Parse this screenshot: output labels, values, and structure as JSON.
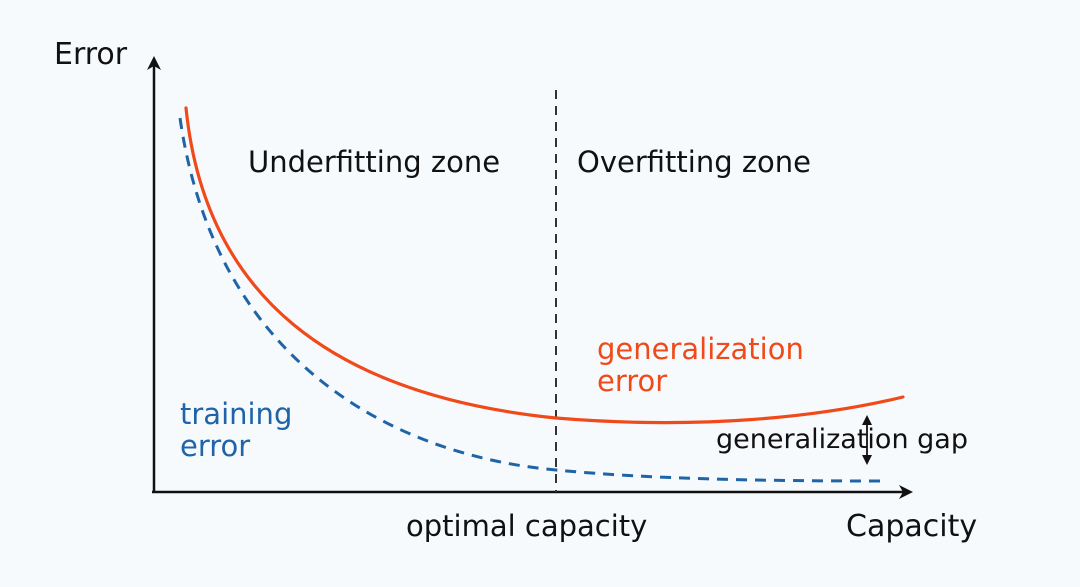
{
  "colors": {
    "background": "#f7fafd",
    "axis": "#111111",
    "text": "#111111",
    "generalization_error": "#f04a1a",
    "training_error": "#1f64a6",
    "divider": "#333333"
  },
  "axes": {
    "y_label": "Error",
    "x_label": "Capacity"
  },
  "zones": {
    "underfitting": "Underfitting zone",
    "overfitting": "Overfitting zone"
  },
  "annotations": {
    "optimal_capacity": "optimal capacity",
    "generalization_gap": "generalization gap"
  },
  "series": {
    "generalization_error": {
      "line1": "generalization",
      "line2": "error",
      "style": "solid"
    },
    "training_error": {
      "line1": "training",
      "line2": "error",
      "style": "dashed"
    }
  }
}
